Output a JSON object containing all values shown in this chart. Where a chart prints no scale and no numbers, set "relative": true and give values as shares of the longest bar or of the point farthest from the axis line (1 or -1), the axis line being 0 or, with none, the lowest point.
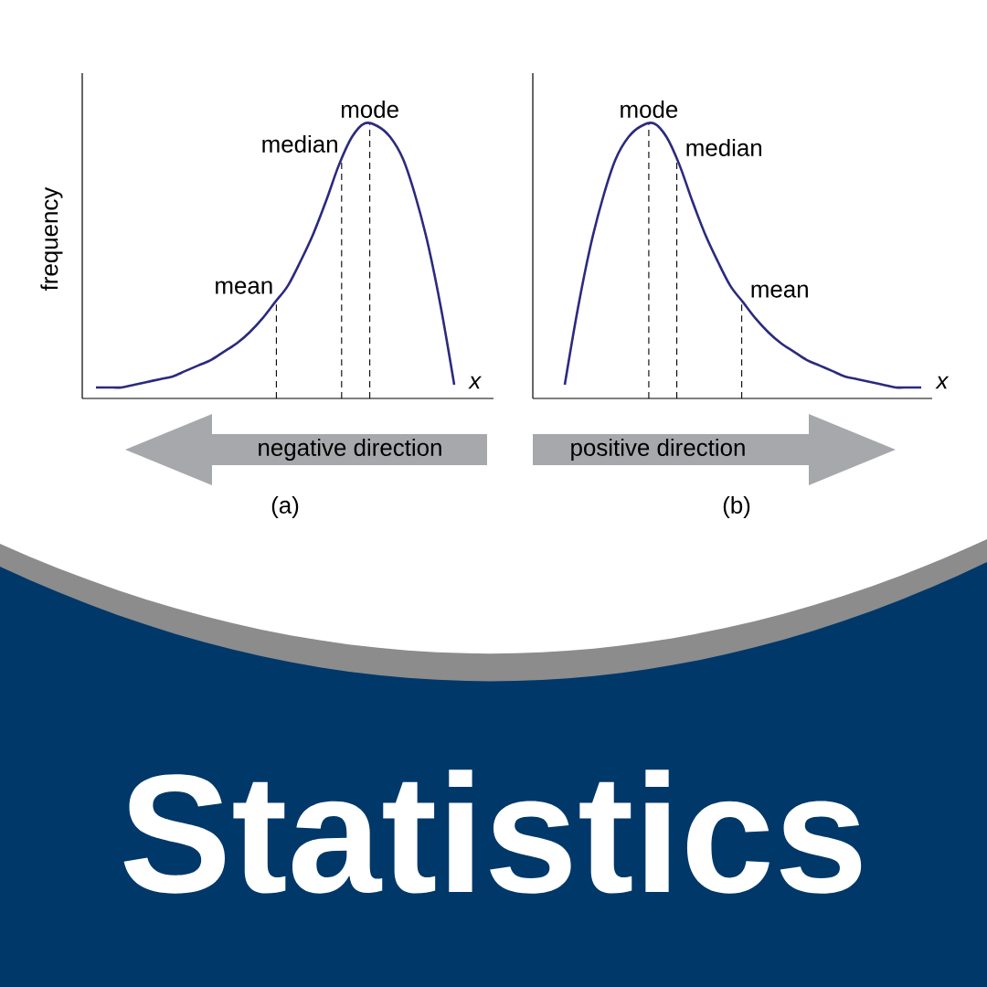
{
  "chart_data": [
    {
      "type": "line",
      "relative": true,
      "tick_labels": false,
      "xlabel": "x",
      "ylabel": "frequency",
      "categories": [
        null,
        null,
        null,
        null,
        null,
        null,
        null,
        null,
        null,
        null,
        null,
        null,
        null,
        null,
        null,
        null,
        null,
        null,
        null,
        null,
        null,
        null,
        null,
        null,
        null,
        null,
        null,
        null,
        null
      ],
      "series": [
        {
          "color": "#2b2a7e",
          "values": [
            0.04,
            0.04,
            0.04,
            0.05,
            0.06,
            0.07,
            0.08,
            0.1,
            0.12,
            0.14,
            0.17,
            0.2,
            0.24,
            0.29,
            0.35,
            0.41,
            0.5,
            0.6,
            0.72,
            0.85,
            0.95,
            1.0,
            0.99,
            0.95,
            0.87,
            0.73,
            0.55,
            0.32,
            0.05
          ]
        }
      ],
      "annotations": [
        "mean",
        "median",
        "mode",
        "negative direction",
        "(a)"
      ]
    },
    {
      "type": "line",
      "relative": true,
      "tick_labels": false,
      "xlabel": "x",
      "categories": [
        null,
        null,
        null,
        null,
        null,
        null,
        null,
        null,
        null,
        null,
        null,
        null,
        null,
        null,
        null,
        null,
        null,
        null,
        null,
        null,
        null,
        null,
        null,
        null,
        null,
        null,
        null,
        null,
        null
      ],
      "series": [
        {
          "color": "#2b2a7e",
          "values": [
            0.05,
            0.32,
            0.55,
            0.73,
            0.87,
            0.95,
            0.99,
            1.0,
            0.95,
            0.85,
            0.72,
            0.6,
            0.5,
            0.41,
            0.35,
            0.29,
            0.24,
            0.2,
            0.17,
            0.14,
            0.12,
            0.1,
            0.08,
            0.07,
            0.06,
            0.05,
            0.04,
            0.04,
            0.04
          ]
        }
      ],
      "annotations": [
        "mode",
        "median",
        "mean",
        "positive direction",
        "(b)"
      ]
    },
    {
      "type": "other",
      "title": "Statistics"
    }
  ]
}
